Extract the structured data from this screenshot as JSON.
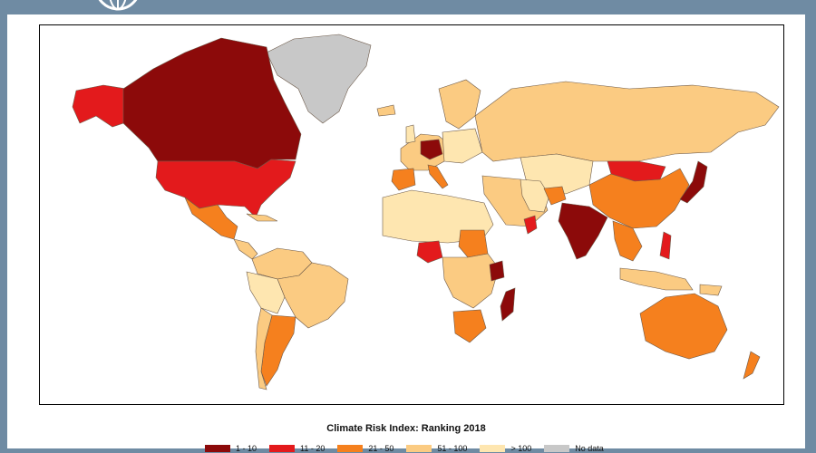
{
  "title": "Climate Risk Index: Ranking 2018",
  "colors": {
    "rank_1_10": "#8c0a0a",
    "rank_11_20": "#e31a1c",
    "rank_21_50": "#f5801e",
    "rank_51_100": "#fbcb82",
    "rank_gt_100": "#fee6b0",
    "no_data": "#c8c8c8",
    "frame_bg": "#6f8ba3"
  },
  "legend": [
    {
      "label": "1 - 10",
      "color": "#8c0a0a"
    },
    {
      "label": "11 - 20",
      "color": "#e31a1c"
    },
    {
      "label": "21 - 50",
      "color": "#f5801e"
    },
    {
      "label": "51 - 100",
      "color": "#fbcb82"
    },
    {
      "label": "> 100",
      "color": "#fee6b0"
    },
    {
      "label": "No data",
      "color": "#c8c8c8"
    }
  ],
  "logo_icon": "globe-icon"
}
